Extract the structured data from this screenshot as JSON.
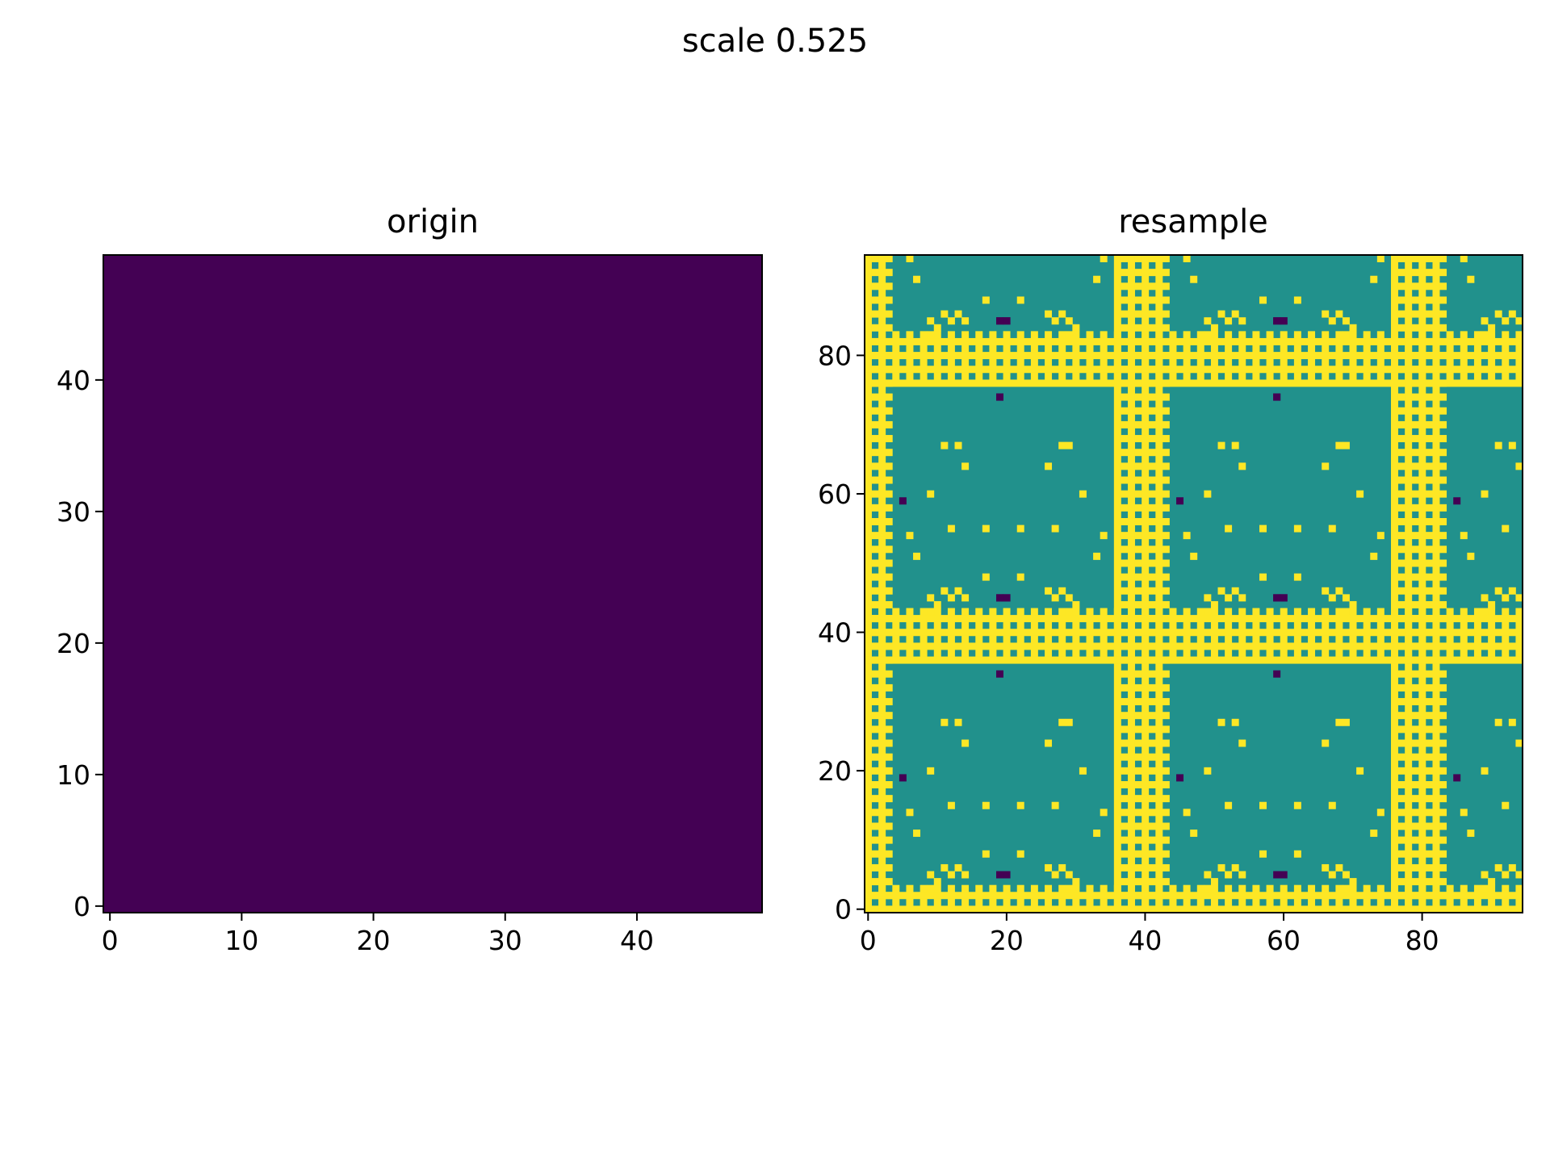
{
  "figure": {
    "suptitle": "scale 0.525"
  },
  "chart_data": [
    {
      "type": "heatmap",
      "title": "origin",
      "xlabel": "",
      "ylabel": "",
      "x_ticks": [
        0,
        10,
        20,
        30,
        40
      ],
      "y_ticks": [
        0,
        10,
        20,
        30,
        40
      ],
      "xlim": [
        -0.5,
        49.5
      ],
      "ylim": [
        -0.5,
        49.5
      ],
      "grid_size": [
        50,
        50
      ],
      "fill_value": 0,
      "cmap": "viridis",
      "colors": {
        "0": "#440154"
      },
      "grid": false,
      "legend": "none"
    },
    {
      "type": "heatmap",
      "title": "resample",
      "xlabel": "",
      "ylabel": "",
      "x_ticks": [
        0,
        20,
        40,
        60,
        80
      ],
      "y_ticks": [
        0,
        20,
        40,
        60,
        80
      ],
      "xlim": [
        -0.5,
        94.5
      ],
      "ylim": [
        -0.5,
        94.5
      ],
      "grid_size": [
        95,
        95
      ],
      "background_value": 0.5,
      "cmap": "viridis",
      "colors": {
        "0": "#440154",
        "0.5": "#21918c",
        "1": "#fde725"
      },
      "period": 40,
      "yellow_columns": [
        0,
        2,
        36,
        38,
        40,
        42
      ],
      "yellow_rows": [
        0,
        2,
        36,
        38,
        40,
        42
      ],
      "dotted_columns": [
        1,
        3,
        37,
        39,
        41,
        43
      ],
      "dotted_rows": [
        1,
        3,
        37,
        39,
        41,
        43
      ],
      "dark_cells": [
        [
          19,
          5
        ],
        [
          20,
          5
        ],
        [
          19,
          34
        ],
        [
          5,
          19
        ],
        [
          19,
          45
        ],
        [
          20,
          45
        ],
        [
          19,
          74
        ]
      ],
      "grid": false,
      "legend": "none"
    }
  ]
}
